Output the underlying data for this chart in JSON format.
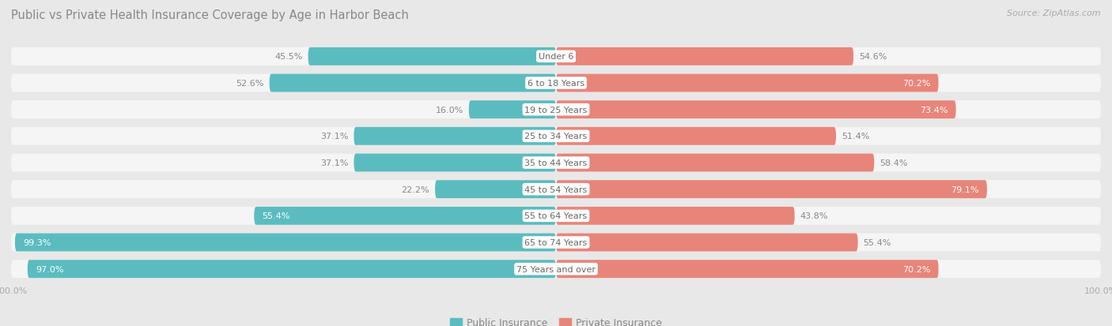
{
  "title": "Public vs Private Health Insurance Coverage by Age in Harbor Beach",
  "source": "Source: ZipAtlas.com",
  "categories": [
    "Under 6",
    "6 to 18 Years",
    "19 to 25 Years",
    "25 to 34 Years",
    "35 to 44 Years",
    "45 to 54 Years",
    "55 to 64 Years",
    "65 to 74 Years",
    "75 Years and over"
  ],
  "public_values": [
    45.5,
    52.6,
    16.0,
    37.1,
    37.1,
    22.2,
    55.4,
    99.3,
    97.0
  ],
  "private_values": [
    54.6,
    70.2,
    73.4,
    51.4,
    58.4,
    79.1,
    43.8,
    55.4,
    70.2
  ],
  "public_color": "#5bbcbf",
  "private_color": "#e8857a",
  "max_val": 100.0,
  "bg_color": "#e8e8e8",
  "row_bg_color": "#f5f5f5",
  "title_color": "#888888",
  "label_dark": "#888888",
  "label_white": "#ffffff",
  "axis_label_color": "#aaaaaa",
  "legend_public": "Public Insurance",
  "legend_private": "Private Insurance",
  "title_fontsize": 10.5,
  "source_fontsize": 8.0,
  "value_fontsize": 8.0,
  "category_fontsize": 8.0
}
